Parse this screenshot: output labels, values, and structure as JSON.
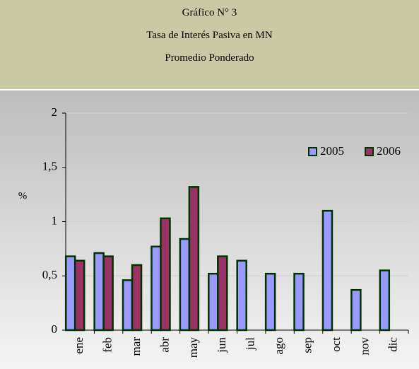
{
  "header": {
    "lines": [
      "Gráfico N° 3",
      "Tasa de Interés Pasiva en MN",
      "Promedio Ponderado"
    ]
  },
  "chart_data": {
    "type": "bar",
    "ylabel": "%",
    "categories": [
      "ene",
      "feb",
      "mar",
      "abr",
      "may",
      "jun",
      "jul",
      "ago",
      "sep",
      "oct",
      "nov",
      "dic"
    ],
    "series": [
      {
        "name": "2005",
        "color": "#9999ff",
        "values": [
          0.68,
          0.71,
          0.46,
          0.77,
          0.84,
          0.52,
          0.64,
          0.52,
          0.52,
          1.1,
          0.37,
          0.55
        ]
      },
      {
        "name": "2006",
        "color": "#993366",
        "values": [
          0.64,
          0.68,
          0.6,
          1.03,
          1.32,
          0.68,
          null,
          null,
          null,
          null,
          null,
          null
        ]
      }
    ],
    "ylim": [
      0,
      2
    ],
    "yticks": [
      0,
      {
        "value": 0.5,
        "label": "0,5"
      },
      1,
      {
        "value": 1.5,
        "label": "1,5"
      },
      2
    ],
    "grid": true,
    "legend": "top-right"
  }
}
